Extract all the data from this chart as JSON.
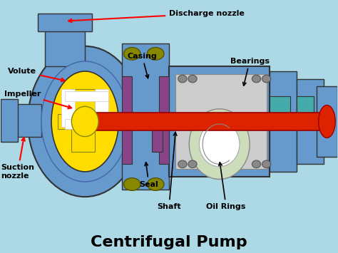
{
  "bg_color": "#add8e6",
  "title": "Centrifugal Pump",
  "title_fontsize": 16,
  "title_bold": true,
  "labels": {
    "Discharge nozzle": [
      0.62,
      0.93,
      0.48,
      0.87,
      "red"
    ],
    "Volute": [
      0.09,
      0.72,
      0.22,
      0.65,
      "red"
    ],
    "Impeller": [
      0.08,
      0.63,
      0.22,
      0.55,
      "red"
    ],
    "Casing": [
      0.44,
      0.76,
      0.44,
      0.68,
      "black"
    ],
    "Bearings": [
      0.74,
      0.73,
      0.68,
      0.62,
      "black"
    ],
    "Suction\nnozzle": [
      0.06,
      0.35,
      0.1,
      0.46,
      "red"
    ],
    "Seal": [
      0.44,
      0.28,
      0.41,
      0.35,
      "black"
    ],
    "Shaft": [
      0.5,
      0.18,
      0.5,
      0.25,
      "black"
    ],
    "Oil Rings": [
      0.63,
      0.18,
      0.63,
      0.3,
      "black"
    ]
  },
  "colors": {
    "blue_body": "#6699cc",
    "blue_dark": "#4466aa",
    "yellow": "#ffdd00",
    "red_shaft": "#dd2200",
    "purple": "#884488",
    "gray": "#aaaaaa",
    "light_gray": "#cccccc",
    "olive": "#888800",
    "teal": "#44aaaa",
    "white": "#ffffff",
    "light_green": "#ccddbb",
    "beige": "#ddddbb"
  }
}
